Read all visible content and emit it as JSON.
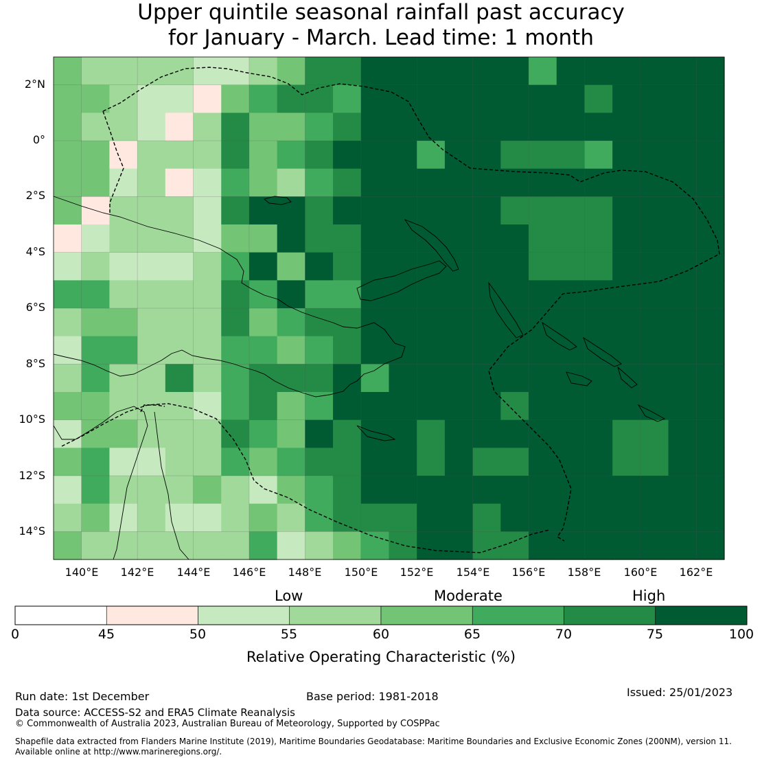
{
  "title": {
    "line1": "Upper quintile seasonal rainfall past accuracy",
    "line2": "for January - March. Lead time: 1 month"
  },
  "map": {
    "lat_ticks": [
      "2°N",
      "0°",
      "2°S",
      "4°S",
      "6°S",
      "8°S",
      "10°S",
      "12°S",
      "14°S"
    ],
    "lon_ticks": [
      "140°E",
      "142°E",
      "144°E",
      "146°E",
      "148°E",
      "150°E",
      "152°E",
      "154°E",
      "156°E",
      "158°E",
      "160°E",
      "162°E"
    ],
    "lon_range": [
      139.0,
      163.0
    ],
    "lat_range": [
      -15.0,
      3.0
    ],
    "grid": "1-degree cells, 2-degree graticule"
  },
  "colorbar": {
    "categories": [
      "Low",
      "Moderate",
      "High"
    ],
    "ticks": [
      "0",
      "45",
      "50",
      "55",
      "60",
      "65",
      "70",
      "75",
      "100"
    ],
    "colors": [
      "#ffffff",
      "#fee8e0",
      "#c7e9c0",
      "#a1d99b",
      "#74c476",
      "#41ab5d",
      "#238b45",
      "#005a32"
    ],
    "label": "Relative Operating Characteristic (%)"
  },
  "footer": {
    "run_date": "Run date: 1st December",
    "base_period": "Base period: 1981-2018",
    "issued": "Issued: 25/01/2023",
    "data_source": "Data source: ACCESS-S2 and ERA5 Climate Reanalysis",
    "copyright": "© Commonwealth of Australia 2023, Australian Bureau of Meteorology, Supported by COSPPac",
    "shapefile_line1": "Shapefile data extracted from Flanders Marine Institute (2019), Maritime Boundaries Geodatabase: Maritime Boundaries and Exclusive Economic Zones (200NM), version 11.",
    "shapefile_line2": "Available online at http://www.marineregions.org/."
  }
}
